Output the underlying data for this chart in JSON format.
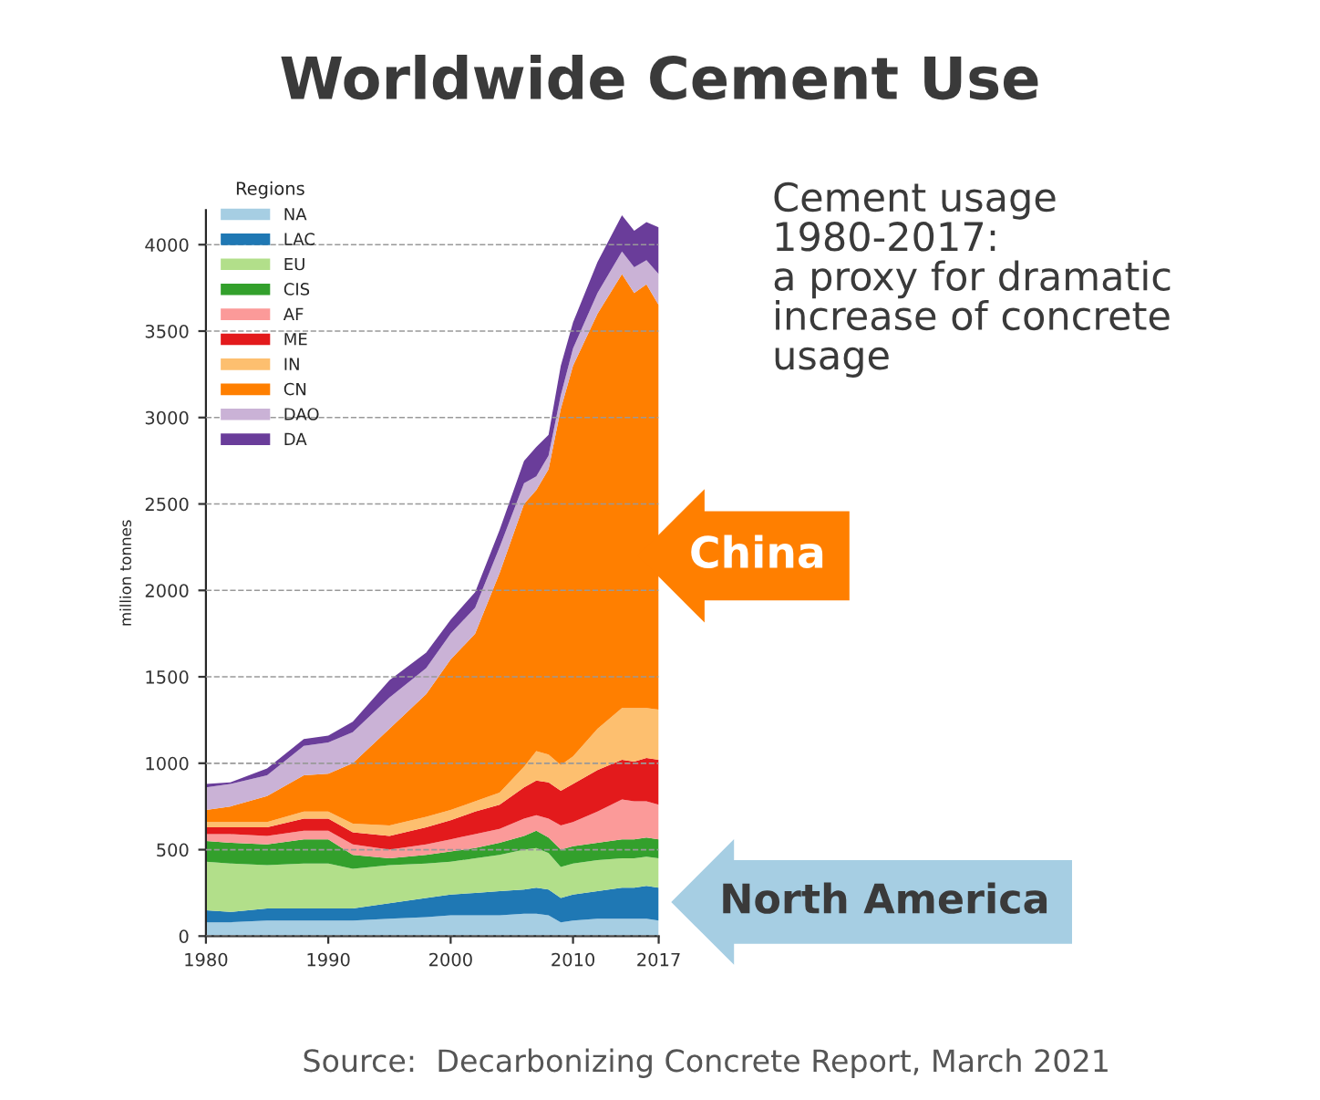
{
  "chart_data": {
    "type": "area",
    "stacked": true,
    "title": "Worldwide Cement Use",
    "ylabel": "million tonnes",
    "legend_title": "Regions",
    "legend": "top left",
    "grid": "y",
    "x": [
      1980,
      1982,
      1985,
      1988,
      1990,
      1992,
      1995,
      1998,
      2000,
      2002,
      2004,
      2006,
      2007,
      2008,
      2009,
      2010,
      2012,
      2014,
      2015,
      2016,
      2017
    ],
    "xlim": [
      1980,
      2017
    ],
    "xticks": [
      1980,
      1990,
      2000,
      2010,
      2017
    ],
    "ylim": [
      0,
      4200
    ],
    "yticks": [
      0,
      500,
      1000,
      1500,
      2000,
      2500,
      3000,
      3500,
      4000
    ],
    "series": [
      {
        "name": "NA",
        "color": "#a6cee3",
        "values": [
          80,
          80,
          90,
          90,
          90,
          90,
          100,
          110,
          120,
          120,
          120,
          130,
          130,
          120,
          80,
          90,
          100,
          100,
          100,
          100,
          90
        ]
      },
      {
        "name": "LAC",
        "color": "#1f78b4",
        "values": [
          70,
          60,
          70,
          70,
          70,
          70,
          90,
          110,
          120,
          130,
          140,
          140,
          150,
          150,
          140,
          150,
          160,
          180,
          180,
          190,
          190
        ]
      },
      {
        "name": "EU",
        "color": "#b2df8a",
        "values": [
          280,
          280,
          250,
          260,
          260,
          230,
          220,
          200,
          190,
          200,
          210,
          230,
          230,
          210,
          180,
          180,
          180,
          170,
          170,
          170,
          170
        ]
      },
      {
        "name": "CIS",
        "color": "#33a02c",
        "values": [
          120,
          120,
          120,
          140,
          140,
          80,
          40,
          50,
          60,
          60,
          70,
          80,
          100,
          90,
          100,
          100,
          100,
          110,
          110,
          110,
          110
        ]
      },
      {
        "name": "AF",
        "color": "#fb9a99",
        "values": [
          40,
          50,
          50,
          50,
          50,
          60,
          50,
          60,
          70,
          80,
          80,
          100,
          90,
          110,
          140,
          140,
          180,
          230,
          220,
          210,
          200
        ]
      },
      {
        "name": "ME",
        "color": "#e31a1c",
        "values": [
          40,
          40,
          50,
          70,
          70,
          70,
          80,
          100,
          110,
          130,
          140,
          180,
          200,
          210,
          200,
          220,
          240,
          230,
          230,
          250,
          260
        ]
      },
      {
        "name": "IN",
        "color": "#fdbf6f",
        "values": [
          30,
          30,
          30,
          40,
          40,
          50,
          60,
          60,
          60,
          60,
          70,
          120,
          170,
          160,
          150,
          160,
          240,
          300,
          310,
          290,
          290
        ]
      },
      {
        "name": "CN",
        "color": "#ff7f00",
        "values": [
          70,
          90,
          150,
          210,
          220,
          350,
          560,
          710,
          870,
          970,
          1270,
          1520,
          1510,
          1650,
          2060,
          2260,
          2400,
          2510,
          2400,
          2450,
          2340
        ]
      },
      {
        "name": "DAO",
        "color": "#cab2d6",
        "values": [
          130,
          130,
          120,
          170,
          180,
          180,
          180,
          150,
          150,
          150,
          150,
          120,
          80,
          80,
          80,
          100,
          120,
          130,
          150,
          140,
          180
        ]
      },
      {
        "name": "DA",
        "color": "#6a3d9a",
        "values": [
          20,
          10,
          40,
          40,
          40,
          60,
          100,
          90,
          80,
          90,
          100,
          130,
          170,
          120,
          170,
          150,
          180,
          210,
          210,
          220,
          270
        ]
      }
    ],
    "annotations": [
      "Cement usage\n1980-2017:\na proxy for dramatic\nincrease of concrete\nusage",
      {
        "text": "China",
        "x": 2017,
        "y": 2200
      },
      {
        "text": "North America",
        "x": 2017,
        "y": 80
      },
      "Source:  Decarbonizing Concrete Report, March 2021"
    ]
  }
}
